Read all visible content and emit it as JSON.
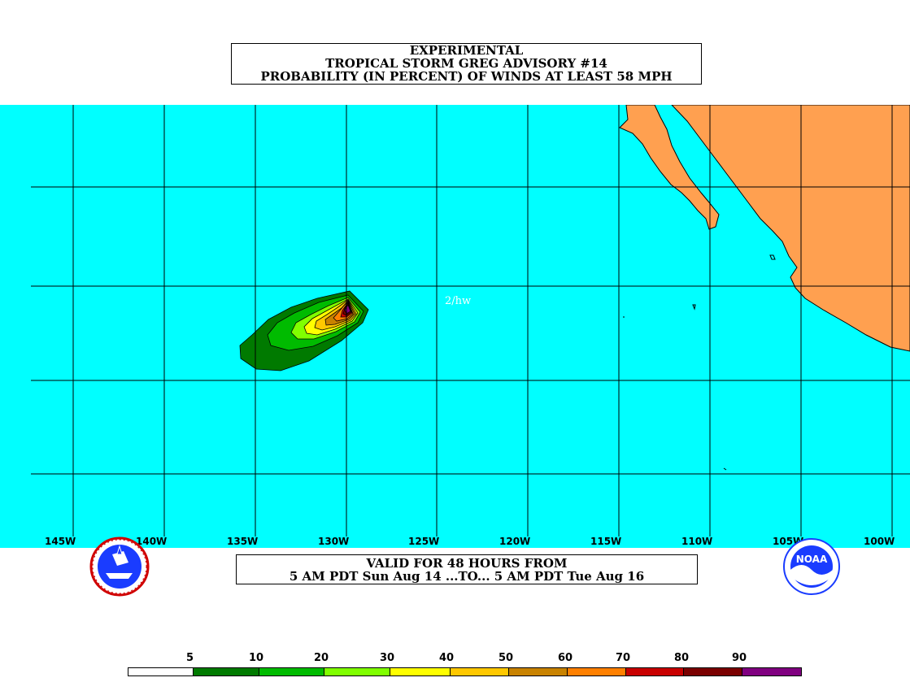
{
  "title": {
    "line1": "EXPERIMENTAL",
    "line2": "TROPICAL STORM GREG ADVISORY #14",
    "line3": "PROBABILITY (IN PERCENT) OF WINDS AT LEAST 58 MPH"
  },
  "map": {
    "ocean_color": "#00ffff",
    "land_color": "#ffa050",
    "annotation": "2/hw",
    "longitude_labels": [
      "145W",
      "140W",
      "135W",
      "130W",
      "125W",
      "120W",
      "115W",
      "110W",
      "105W",
      "100W"
    ]
  },
  "valid": {
    "line1": "VALID FOR 48 HOURS FROM",
    "line2": "5 AM PDT Sun Aug 14 ...TO... 5 AM PDT Tue Aug 16"
  },
  "logos": {
    "left": "national-weather-service-logo",
    "right": "noaa-logo",
    "right_text": "NOAA"
  },
  "scale": {
    "labels": [
      "5",
      "10",
      "20",
      "30",
      "40",
      "50",
      "60",
      "70",
      "80",
      "90"
    ],
    "colors": [
      "#ffffff",
      "#007a00",
      "#00bb00",
      "#80ff00",
      "#ffff00",
      "#ffc800",
      "#c88200",
      "#ff8000",
      "#c80000",
      "#7a0000",
      "#800080"
    ]
  }
}
